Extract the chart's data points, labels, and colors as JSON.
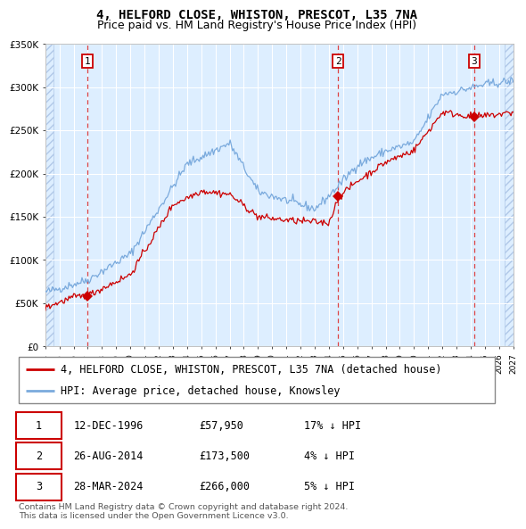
{
  "title": "4, HELFORD CLOSE, WHISTON, PRESCOT, L35 7NA",
  "subtitle": "Price paid vs. HM Land Registry's House Price Index (HPI)",
  "ylim": [
    0,
    350000
  ],
  "yticks": [
    0,
    50000,
    100000,
    150000,
    200000,
    250000,
    300000,
    350000
  ],
  "ytick_labels": [
    "£0",
    "£50K",
    "£100K",
    "£150K",
    "£200K",
    "£250K",
    "£300K",
    "£350K"
  ],
  "xmin_year": 1994,
  "xmax_year": 2027,
  "xticks": [
    1994,
    1995,
    1996,
    1997,
    1998,
    1999,
    2000,
    2001,
    2002,
    2003,
    2004,
    2005,
    2006,
    2007,
    2008,
    2009,
    2010,
    2011,
    2012,
    2013,
    2014,
    2015,
    2016,
    2017,
    2018,
    2019,
    2020,
    2021,
    2022,
    2023,
    2024,
    2025,
    2026,
    2027
  ],
  "hpi_color": "#7aaadd",
  "price_color": "#cc0000",
  "marker_color": "#cc0000",
  "vline_color": "#dd4444",
  "background_color": "#ddeeff",
  "grid_color": "#ffffff",
  "sale_dates": [
    1996.95,
    2014.65,
    2024.24
  ],
  "sale_prices": [
    57950,
    173500,
    266000
  ],
  "sale_labels": [
    "1",
    "2",
    "3"
  ],
  "legend_line1": "4, HELFORD CLOSE, WHISTON, PRESCOT, L35 7NA (detached house)",
  "legend_line2": "HPI: Average price, detached house, Knowsley",
  "table_data": [
    [
      "1",
      "12-DEC-1996",
      "£57,950",
      "17% ↓ HPI"
    ],
    [
      "2",
      "26-AUG-2014",
      "£173,500",
      "4% ↓ HPI"
    ],
    [
      "3",
      "28-MAR-2024",
      "£266,000",
      "5% ↓ HPI"
    ]
  ],
  "footnote": "Contains HM Land Registry data © Crown copyright and database right 2024.\nThis data is licensed under the Open Government Licence v3.0.",
  "title_fontsize": 10,
  "subtitle_fontsize": 9,
  "tick_fontsize": 7.5,
  "legend_fontsize": 8.5,
  "table_fontsize": 8.5
}
